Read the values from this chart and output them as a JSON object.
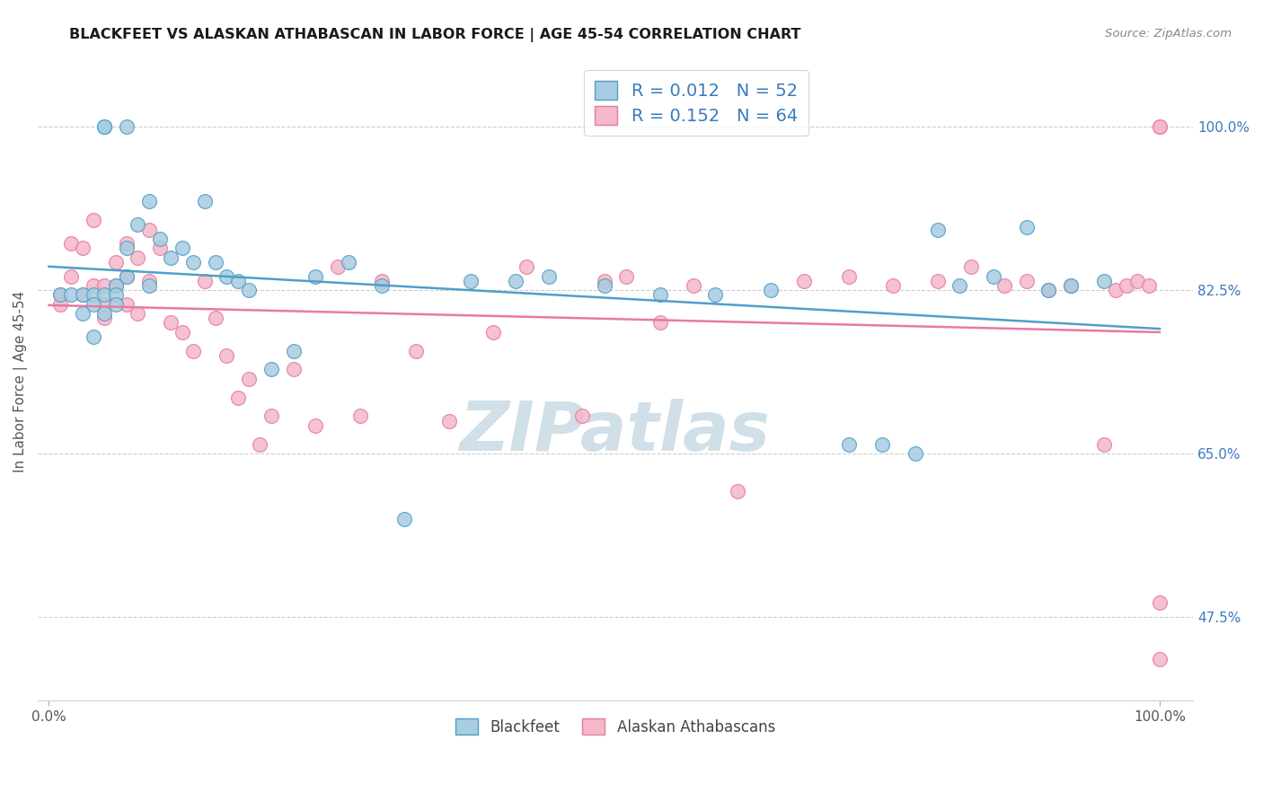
{
  "title": "BLACKFEET VS ALASKAN ATHABASCAN IN LABOR FORCE | AGE 45-54 CORRELATION CHART",
  "source": "Source: ZipAtlas.com",
  "ylabel": "In Labor Force | Age 45-54",
  "legend_blue_label": "Blackfeet",
  "legend_pink_label": "Alaskan Athabascans",
  "legend_blue_r": "R = 0.012",
  "legend_blue_n": "N = 52",
  "legend_pink_r": "R = 0.152",
  "legend_pink_n": "N = 64",
  "blue_color": "#a8cce0",
  "pink_color": "#f4b8c8",
  "blue_edge_color": "#4f9fc8",
  "pink_edge_color": "#e87aa0",
  "blue_line_color": "#4f9fc8",
  "pink_line_color": "#e87aa0",
  "legend_text_color": "#3a7abf",
  "watermark_color": "#d0dfe8",
  "background_color": "#ffffff",
  "blue_scatter_x": [
    0.01,
    0.02,
    0.03,
    0.03,
    0.04,
    0.04,
    0.04,
    0.05,
    0.05,
    0.05,
    0.05,
    0.06,
    0.06,
    0.06,
    0.07,
    0.07,
    0.07,
    0.08,
    0.09,
    0.09,
    0.1,
    0.11,
    0.12,
    0.13,
    0.14,
    0.15,
    0.16,
    0.17,
    0.18,
    0.2,
    0.22,
    0.24,
    0.27,
    0.3,
    0.32,
    0.38,
    0.42,
    0.45,
    0.5,
    0.55,
    0.6,
    0.65,
    0.72,
    0.75,
    0.78,
    0.8,
    0.82,
    0.85,
    0.88,
    0.9,
    0.92,
    0.95
  ],
  "blue_scatter_y": [
    0.82,
    0.82,
    0.82,
    0.8,
    0.82,
    0.81,
    0.775,
    1.0,
    1.0,
    0.82,
    0.8,
    0.83,
    0.82,
    0.81,
    1.0,
    0.87,
    0.84,
    0.895,
    0.92,
    0.83,
    0.88,
    0.86,
    0.87,
    0.855,
    0.92,
    0.855,
    0.84,
    0.835,
    0.825,
    0.74,
    0.76,
    0.84,
    0.855,
    0.83,
    0.58,
    0.835,
    0.835,
    0.84,
    0.83,
    0.82,
    0.82,
    0.825,
    0.66,
    0.66,
    0.65,
    0.89,
    0.83,
    0.84,
    0.892,
    0.825,
    0.83,
    0.835
  ],
  "pink_scatter_x": [
    0.01,
    0.01,
    0.02,
    0.02,
    0.03,
    0.03,
    0.04,
    0.04,
    0.05,
    0.05,
    0.05,
    0.06,
    0.06,
    0.07,
    0.07,
    0.07,
    0.08,
    0.08,
    0.09,
    0.09,
    0.1,
    0.11,
    0.12,
    0.13,
    0.14,
    0.15,
    0.16,
    0.17,
    0.18,
    0.19,
    0.2,
    0.22,
    0.24,
    0.26,
    0.28,
    0.3,
    0.33,
    0.36,
    0.4,
    0.43,
    0.48,
    0.5,
    0.52,
    0.55,
    0.58,
    0.62,
    0.68,
    0.72,
    0.76,
    0.8,
    0.83,
    0.86,
    0.88,
    0.9,
    0.92,
    0.95,
    0.96,
    0.97,
    0.98,
    0.99,
    1.0,
    1.0,
    1.0,
    1.0
  ],
  "pink_scatter_y": [
    0.82,
    0.81,
    0.875,
    0.84,
    0.87,
    0.82,
    0.9,
    0.83,
    0.83,
    0.81,
    0.795,
    0.855,
    0.83,
    0.875,
    0.84,
    0.81,
    0.86,
    0.8,
    0.89,
    0.835,
    0.87,
    0.79,
    0.78,
    0.76,
    0.835,
    0.795,
    0.755,
    0.71,
    0.73,
    0.66,
    0.69,
    0.74,
    0.68,
    0.85,
    0.69,
    0.835,
    0.76,
    0.685,
    0.78,
    0.85,
    0.69,
    0.835,
    0.84,
    0.79,
    0.83,
    0.61,
    0.835,
    0.84,
    0.83,
    0.835,
    0.85,
    0.83,
    0.835,
    0.825,
    0.83,
    0.66,
    0.825,
    0.83,
    0.835,
    0.83,
    1.0,
    1.0,
    0.49,
    0.43
  ]
}
